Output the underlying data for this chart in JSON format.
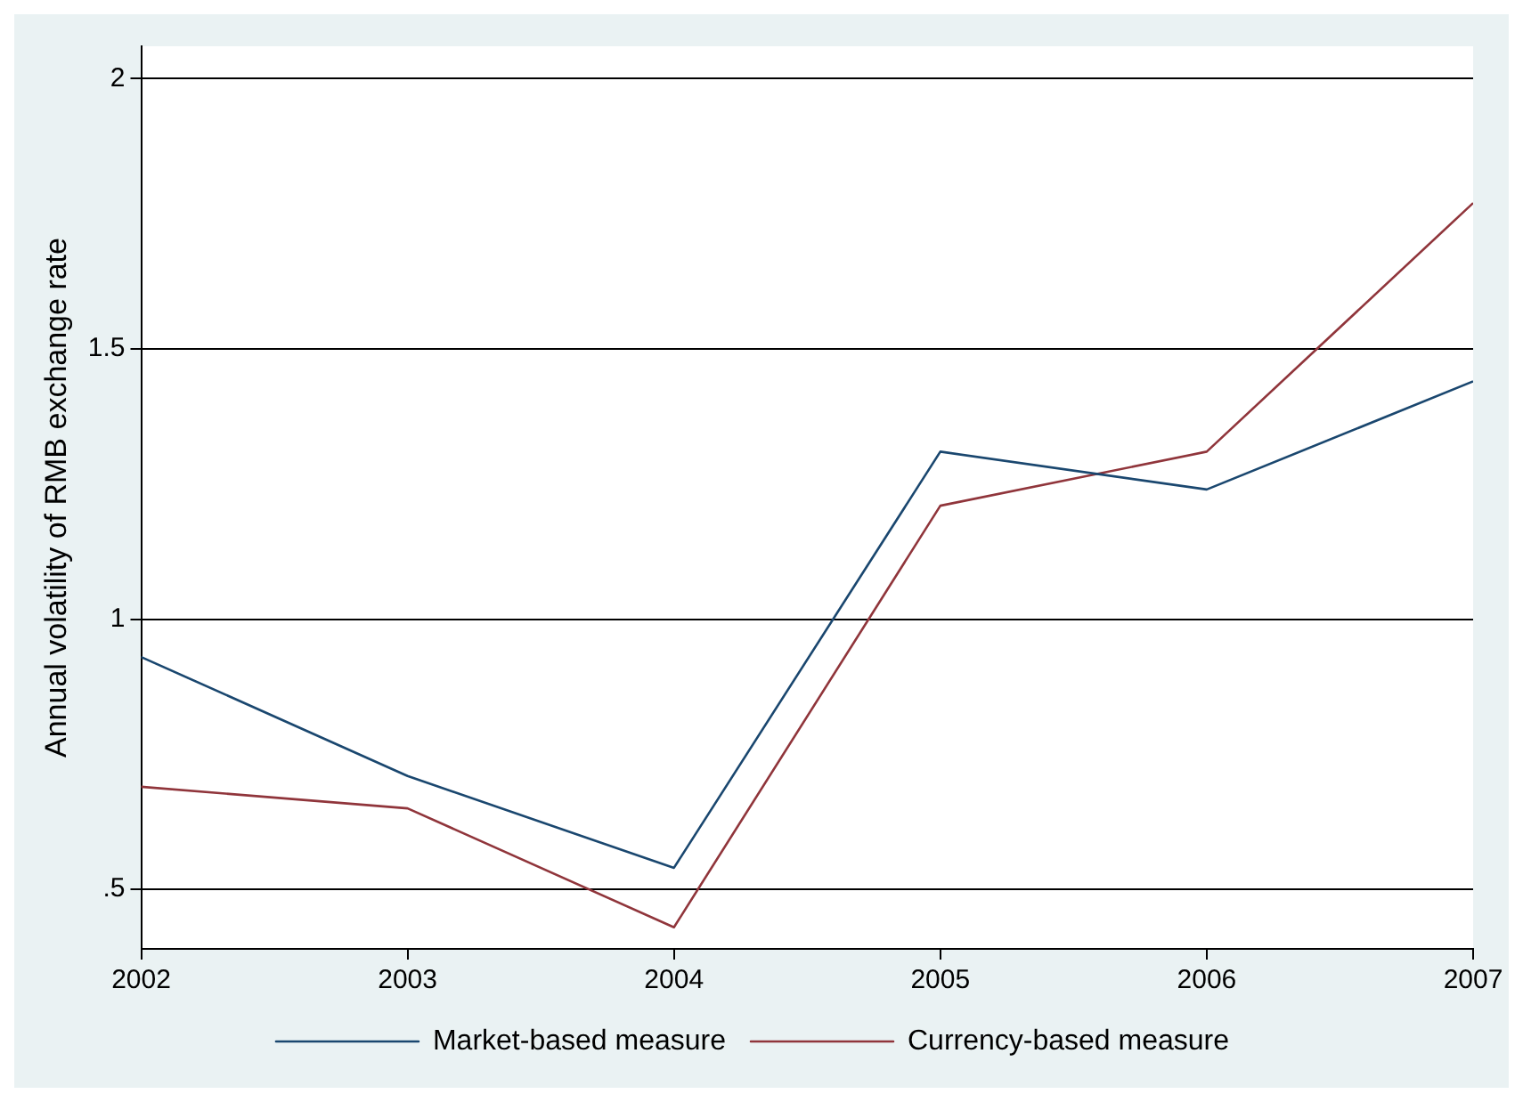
{
  "chart_data": {
    "type": "line",
    "ylabel": "Annual volatility of RMB exchange rate",
    "x": [
      2002,
      2003,
      2004,
      2005,
      2006,
      2007
    ],
    "series": [
      {
        "name": "Market-based measure",
        "color": "#1a476f",
        "values": [
          0.93,
          0.71,
          0.54,
          1.31,
          1.24,
          1.44
        ]
      },
      {
        "name": "Currency-based measure",
        "color": "#90353b",
        "values": [
          0.69,
          0.65,
          0.43,
          1.21,
          1.31,
          1.77
        ]
      }
    ],
    "xlim": [
      2002,
      2007
    ],
    "xticks": [
      2002,
      2003,
      2004,
      2005,
      2006,
      2007
    ],
    "ylim": [
      0.39,
      2.06
    ],
    "yticks": [
      {
        "value": 0.5,
        "label": ".5"
      },
      1,
      1.5,
      2
    ],
    "grid": "y",
    "legend": "bottom",
    "marker": "none",
    "line_style": "solid"
  }
}
